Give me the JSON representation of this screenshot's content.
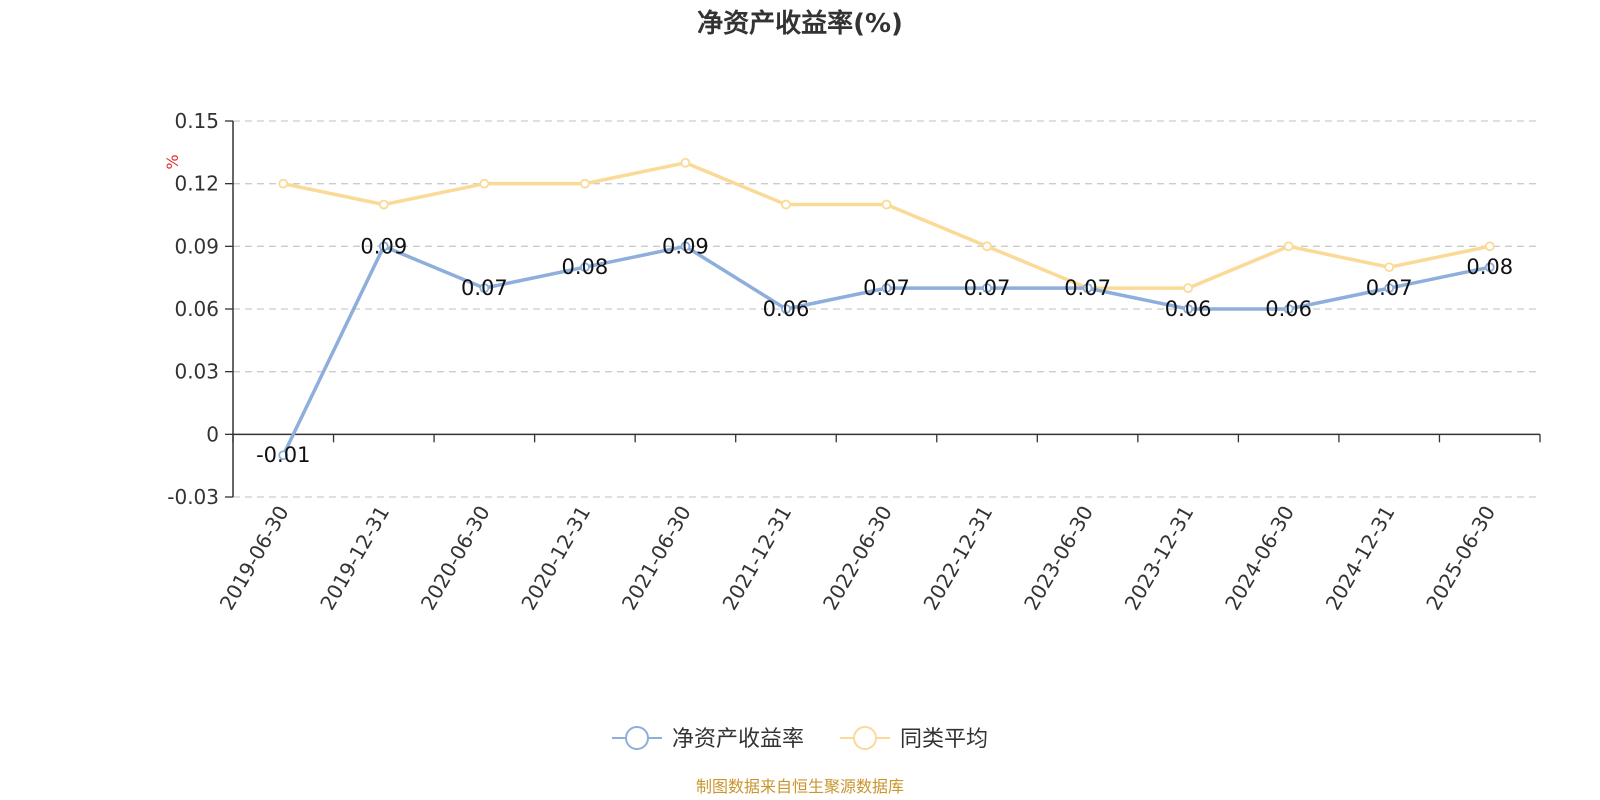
{
  "chart_data": {
    "type": "line",
    "title": "净资产收益率(%)",
    "y_unit": "%",
    "x": [
      "2019-06-30",
      "2019-12-31",
      "2020-06-30",
      "2020-12-31",
      "2021-06-30",
      "2021-12-31",
      "2022-06-30",
      "2022-12-31",
      "2023-06-30",
      "2023-12-31",
      "2024-06-30",
      "2024-12-31",
      "2025-06-30"
    ],
    "ylim": [
      -0.03,
      0.15
    ],
    "yticks": [
      "0.15",
      "0.12",
      "0.09",
      "0.06",
      "0.03",
      "0",
      "-0.03"
    ],
    "grid": true,
    "legend_position": "bottom-center",
    "series": [
      {
        "name": "净资产收益率",
        "color": "#8eaedb",
        "data_labels": true,
        "values": [
          -0.01,
          0.09,
          0.07,
          0.08,
          0.09,
          0.06,
          0.07,
          0.07,
          0.07,
          0.06,
          0.06,
          0.07,
          0.08
        ],
        "labels": [
          "-0.01",
          "0.09",
          "0.07",
          "0.08",
          "0.09",
          "0.06",
          "0.07",
          "0.07",
          "0.07",
          "0.06",
          "0.06",
          "0.07",
          "0.08"
        ]
      },
      {
        "name": "同类平均",
        "color": "#fbd997",
        "data_labels": false,
        "values": [
          0.12,
          0.11,
          0.12,
          0.12,
          0.13,
          0.11,
          0.11,
          0.09,
          0.07,
          0.07,
          0.09,
          0.08,
          0.09
        ]
      }
    ]
  },
  "colors": {
    "axis": "#333333",
    "grid": "#cccccc",
    "unit": "#e03030",
    "source": "#c9962e"
  },
  "source_text": "制图数据来自恒生聚源数据库"
}
